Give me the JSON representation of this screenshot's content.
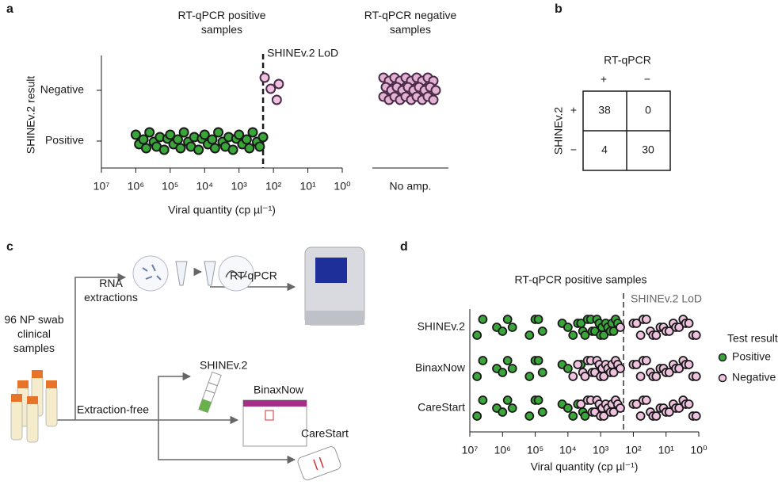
{
  "panel_labels": [
    "a",
    "b",
    "c",
    "d"
  ],
  "chart_data": [
    {
      "type": "scatter",
      "group_titles": [
        "RT-qPCR positive samples",
        "RT-qPCR negative samples"
      ],
      "ylabel": "SHINEv.2 result",
      "categories": [
        "Negative",
        "Positive"
      ],
      "xlabel": "Viral quantity (cp µl⁻¹)",
      "xscale": "log",
      "xlim": [
        10000000,
        1
      ],
      "xticks": [
        {
          "value": 10000000,
          "label": "10⁷"
        },
        {
          "value": 1000000,
          "label": "10⁶"
        },
        {
          "value": 100000,
          "label": "10⁵"
        },
        {
          "value": 10000,
          "label": "10⁴"
        },
        {
          "value": 1000,
          "label": "10³"
        },
        {
          "value": 100,
          "label": "10²"
        },
        {
          "value": 10,
          "label": "10¹"
        },
        {
          "value": 1,
          "label": "10⁰"
        }
      ],
      "lod": {
        "value": 200,
        "label": "SHINEv.2 LoD"
      },
      "series": [
        {
          "color": "#efc3df",
          "values": [
            180,
            120,
            80,
            70
          ]
        },
        {
          "color": "#3aa63a",
          "values": [
            1000000,
            800000,
            600000,
            500000,
            400000,
            300000,
            250000,
            200000,
            150000,
            120000,
            100000,
            80000,
            60000,
            50000,
            40000,
            30000,
            25000,
            20000,
            15000,
            12000,
            10000,
            8000,
            6000,
            5000,
            4000,
            3000,
            2500,
            2000,
            1500,
            1200,
            1000,
            800,
            600,
            500,
            400,
            300,
            250,
            200
          ]
        }
      ],
      "no_amp_label": "No amp.",
      "no_amp_color": "#e3b3d3"
    },
    {
      "type": "strip",
      "title": "RT-qPCR positive samples",
      "categories": [
        "SHINEv.2",
        "BinaxNow",
        "CareStart"
      ],
      "xlabel": "Viral quantity (cp µl⁻¹)",
      "xscale": "log",
      "xlim": [
        10000000,
        1
      ],
      "xticks": [
        {
          "value": 10000000,
          "label": "10⁷"
        },
        {
          "value": 1000000,
          "label": "10⁶"
        },
        {
          "value": 100000,
          "label": "10⁵"
        },
        {
          "value": 10000,
          "label": "10⁴"
        },
        {
          "value": 1000,
          "label": "10³"
        },
        {
          "value": 100,
          "label": "10²"
        },
        {
          "value": 10,
          "label": "10¹"
        },
        {
          "value": 1,
          "label": "10⁰"
        }
      ],
      "lod": {
        "value": 200,
        "label": "SHINEv.2 LoD"
      },
      "legend_title": "Test result:",
      "series": [
        {
          "name": "Positive",
          "color": "#3aa63a",
          "values": [
            [
              6000000,
              4000000,
              1500000,
              1000000,
              700000,
              500000,
              150000,
              100000,
              80000,
              60000,
              15000,
              10000,
              7000,
              5000,
              4000,
              3500,
              3000,
              2500,
              2000,
              1800,
              1500,
              1300,
              1100,
              1000,
              900,
              800,
              700,
              600,
              500,
              450,
              400,
              350,
              300
            ],
            [
              6000000,
              4000000,
              1500000,
              1000000,
              700000,
              500000,
              150000,
              100000,
              80000,
              60000,
              15000,
              10000,
              4000
            ],
            [
              6000000,
              4000000,
              1500000,
              1000000,
              700000,
              500000,
              150000,
              100000,
              80000,
              60000,
              15000,
              10000,
              7000,
              5000,
              3500,
              3000
            ]
          ]
        },
        {
          "name": "Negative",
          "color": "#efc3df",
          "values": [
            [
              250,
              100,
              80,
              60,
              50,
              40,
              30,
              25,
              20,
              15,
              12,
              10,
              8,
              6,
              5,
              4,
              3,
              2.5,
              2,
              1.5,
              1.2
            ],
            [
              7000,
              5000,
              3500,
              3000,
              2500,
              2000,
              1800,
              1500,
              1300,
              1100,
              1000,
              900,
              800,
              700,
              600,
              500,
              450,
              400,
              350,
              300,
              250,
              100,
              80,
              60,
              50,
              40,
              30,
              25,
              20,
              15,
              12,
              10,
              8,
              6,
              5,
              4,
              3,
              2.5,
              2,
              1.5,
              1.2
            ],
            [
              4000,
              2500,
              2000,
              1800,
              1500,
              1300,
              1100,
              1000,
              900,
              800,
              700,
              600,
              500,
              450,
              400,
              350,
              300,
              250,
              100,
              80,
              60,
              50,
              40,
              30,
              25,
              20,
              15,
              12,
              10,
              8,
              6,
              5,
              4,
              3,
              2.5,
              2,
              1.5,
              1.2
            ]
          ]
        }
      ]
    }
  ],
  "table": {
    "title": "RT-qPCR",
    "column_headers": [
      "+",
      "−"
    ],
    "row_title": "SHINEv.2",
    "row_headers": [
      "+",
      "−"
    ],
    "cells": [
      [
        38,
        0
      ],
      [
        4,
        30
      ]
    ]
  },
  "diagram": {
    "rna": "RNA extractions",
    "rtqpcr": "RT-qPCR",
    "samples": "96 NP swab clinical samples",
    "extraction_free": "Extraction-free",
    "shine": "SHINEv.2",
    "binax": "BinaxNow",
    "carestart": "CareStart"
  }
}
